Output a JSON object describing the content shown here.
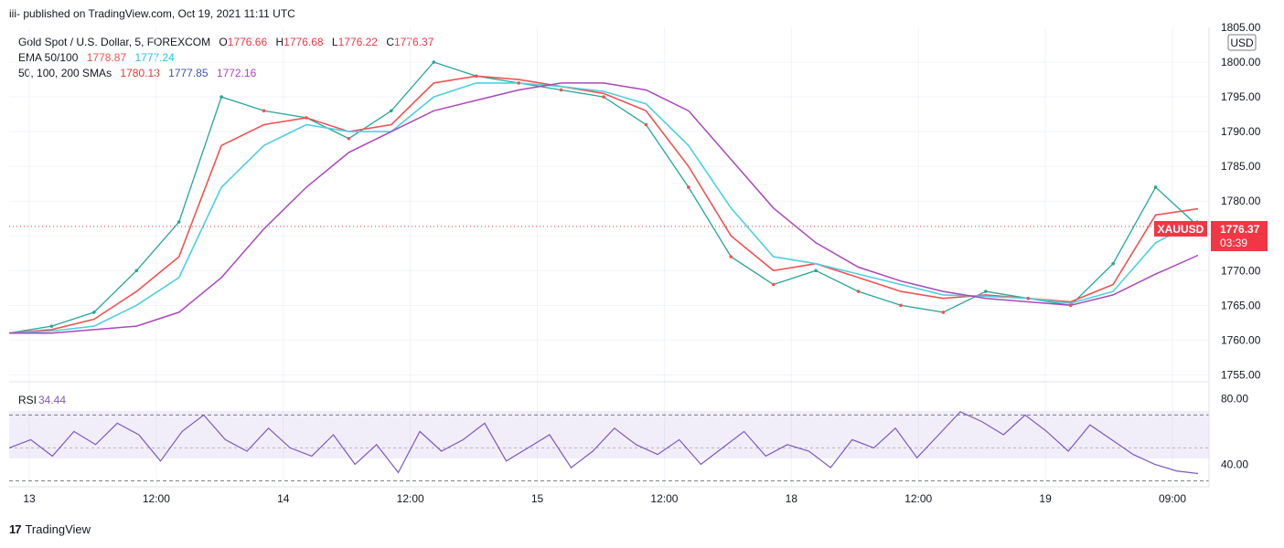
{
  "header": {
    "published": "iii- published on TradingView.com, Oct 19, 2021 11:11 UTC"
  },
  "legend": {
    "symbol": "Gold Spot / U.S. Dollar, 5, FOREXCOM",
    "o_label": "O",
    "o_value": "1776.66",
    "h_label": "H",
    "h_value": "1776.68",
    "l_label": "L",
    "l_value": "1776.22",
    "c_label": "C",
    "c_value": "1776.37",
    "ema_label": "EMA 50/100",
    "ema50": "1778.87",
    "ema100": "1777.24",
    "sma_label": "50, 100, 200 SMAs",
    "sma50": "1780.13",
    "sma100": "1777.85",
    "sma200": "1772.16"
  },
  "price_axis": {
    "currency": "USD",
    "last_symbol": "XAUUSD",
    "last_price": "1776.37",
    "countdown": "03:39"
  },
  "rsi": {
    "label": "RSI",
    "value": "34.44"
  },
  "footer": {
    "brand": "TradingView",
    "logo": "17"
  },
  "colors": {
    "up": "#26a69a",
    "down": "#ef5350",
    "ema50": "#ef5350",
    "ema100": "#4dd0e1",
    "sma50": "#e53935",
    "sma100": "#3f51b5",
    "sma200": "#ab47bc",
    "rsi": "#7e57c2",
    "last": "#f23645",
    "text": "#131722"
  },
  "chart_data": {
    "type": "line",
    "title": "Gold Spot / U.S. Dollar, 5, FOREXCOM",
    "x_ticks": [
      "13",
      "12:00",
      "14",
      "12:00",
      "15",
      "12:00",
      "18",
      "12:00",
      "19",
      "09:00"
    ],
    "y_ticks": [
      "1755.00",
      "1760.00",
      "1765.00",
      "1770.00",
      "1775.00",
      "1780.00",
      "1785.00",
      "1790.00",
      "1795.00",
      "1800.00",
      "1805.00"
    ],
    "ylim": [
      1754,
      1805
    ],
    "grid": true,
    "x": [
      "13",
      "",
      "",
      "",
      "12:00",
      "",
      "",
      "14",
      "",
      "",
      "12:00",
      "",
      "",
      "15",
      "",
      "",
      "12:00",
      "",
      "",
      "18",
      "",
      "",
      "12:00",
      "",
      "",
      "19",
      "",
      "09:00",
      ""
    ],
    "series": [
      {
        "name": "XAUUSD",
        "values": [
          1761,
          1762,
          1764,
          1770,
          1777,
          1795,
          1793,
          1792,
          1789,
          1793,
          1800,
          1798,
          1797,
          1796,
          1795,
          1791,
          1782,
          1772,
          1768,
          1770,
          1767,
          1765,
          1764,
          1767,
          1766,
          1765,
          1771,
          1782,
          1776.4
        ]
      },
      {
        "name": "EMA 50",
        "values": [
          1761,
          1761.5,
          1763,
          1767,
          1772,
          1788,
          1791,
          1792,
          1790,
          1791,
          1797,
          1798,
          1797.5,
          1796.5,
          1795.5,
          1793,
          1785,
          1775,
          1770,
          1771,
          1769,
          1767,
          1766,
          1766.5,
          1766,
          1765.5,
          1768,
          1778,
          1778.9
        ]
      },
      {
        "name": "EMA 100",
        "values": [
          1761,
          1761.3,
          1762,
          1765,
          1769,
          1782,
          1788,
          1791,
          1790,
          1790,
          1795,
          1797,
          1797,
          1796.5,
          1795.8,
          1794,
          1788,
          1779,
          1772,
          1771,
          1769.5,
          1768,
          1766.5,
          1766.3,
          1766,
          1765.3,
          1767,
          1774,
          1777.2
        ]
      },
      {
        "name": "SMA 200",
        "values": [
          1761,
          1761,
          1761.5,
          1762,
          1764,
          1769,
          1776,
          1782,
          1787,
          1790,
          1793,
          1794.5,
          1796,
          1797,
          1797,
          1796,
          1793,
          1786,
          1779,
          1774,
          1770.5,
          1768.5,
          1767,
          1766,
          1765.5,
          1765,
          1766.5,
          1769.5,
          1772.2
        ]
      }
    ],
    "last_price": 1776.37,
    "rsi": {
      "label": "RSI",
      "ylim": [
        28,
        88
      ],
      "y_ticks": [
        "40.00",
        "80.00"
      ],
      "bands": [
        30,
        70
      ],
      "values": [
        50,
        55,
        45,
        60,
        52,
        65,
        58,
        42,
        60,
        70,
        55,
        48,
        62,
        50,
        45,
        58,
        40,
        52,
        35,
        60,
        48,
        55,
        65,
        42,
        50,
        58,
        38,
        48,
        62,
        52,
        46,
        55,
        40,
        50,
        60,
        45,
        52,
        48,
        38,
        55,
        50,
        62,
        44,
        58,
        72,
        66,
        58,
        70,
        60,
        48,
        64,
        55,
        46,
        40,
        36,
        34.4
      ]
    }
  }
}
